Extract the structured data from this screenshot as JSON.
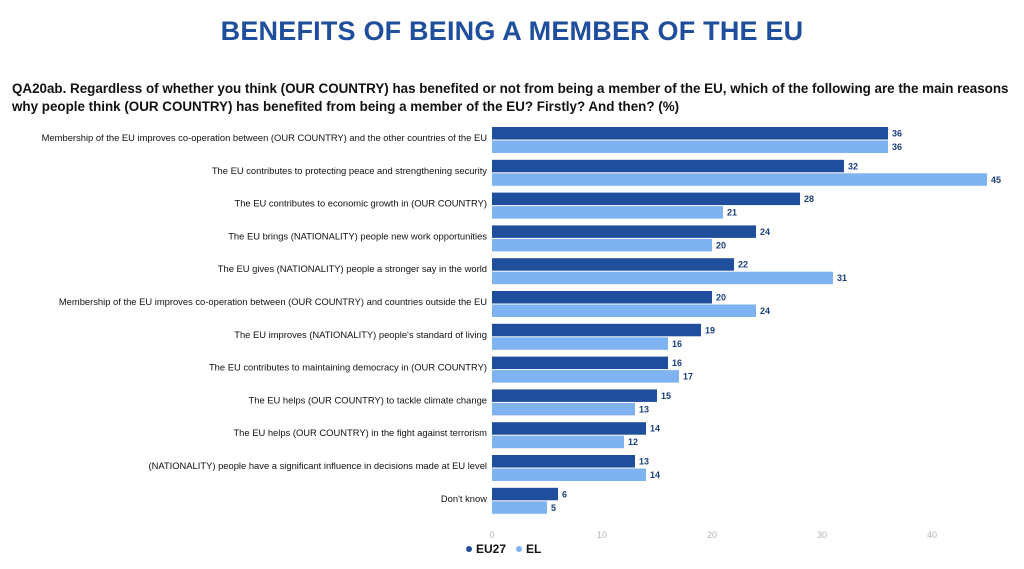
{
  "title": "BENEFITS OF BEING A MEMBER OF THE EU",
  "question": "QA20ab. Regardless of whether you think (OUR COUNTRY) has benefited or not from being a member of the EU, which of the following are the main reasons why people think (OUR COUNTRY) has benefited from being a member of the EU? Firstly? And then? (%)",
  "colors": {
    "title": "#1f4e9c",
    "EU27": "#1f4e9c",
    "EL": "#7fb2f0"
  },
  "chart_data": {
    "type": "bar",
    "orientation": "horizontal",
    "categories": [
      "Membership of the EU improves co-operation between (OUR COUNTRY) and the other countries of the EU",
      "The EU contributes to protecting peace and strengthening security",
      "The EU contributes to economic growth in (OUR COUNTRY)",
      "The EU brings (NATIONALITY) people new work opportunities",
      "The EU gives (NATIONALITY) people a stronger say in the world",
      "Membership of the EU improves co-operation between (OUR COUNTRY) and countries outside the EU",
      "The EU improves (NATIONALITY) people's standard of living",
      "The EU contributes to maintaining democracy in (OUR COUNTRY)",
      "The EU helps (OUR COUNTRY) to tackle climate change",
      "The EU helps (OUR COUNTRY) in the fight against terrorism",
      "(NATIONALITY) people have a significant influence in decisions made at EU level",
      "Don't know"
    ],
    "series": [
      {
        "name": "EU27",
        "color": "#1f4e9c",
        "values": [
          36,
          32,
          28,
          24,
          22,
          20,
          19,
          16,
          15,
          14,
          13,
          6
        ]
      },
      {
        "name": "EL",
        "color": "#7fb2f0",
        "values": [
          36,
          45,
          21,
          20,
          31,
          24,
          16,
          17,
          13,
          12,
          14,
          5
        ]
      }
    ],
    "xlim": [
      0,
      45
    ],
    "xticks": [
      0,
      10,
      20,
      30,
      40
    ],
    "grid": false,
    "legend_position": "bottom-center"
  }
}
